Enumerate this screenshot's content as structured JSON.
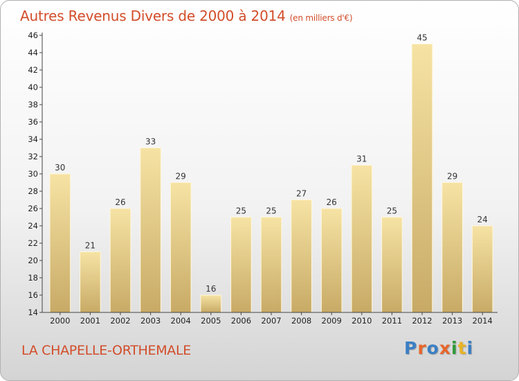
{
  "header": {
    "title": "Autres Revenus Divers de 2000 à 2014",
    "unit": "(en milliers d'€)"
  },
  "footer": {
    "commune": "LA CHAPELLE-ORTHEMALE",
    "logo_text": "Proxiti"
  },
  "colors": {
    "title": "#d24d2a",
    "bar_light": "#f6e3a4",
    "bar_dark": "#c8aa66",
    "logo": [
      "#3b7fc4",
      "#e8662a",
      "#3b7fc4",
      "#e8662a",
      "#2f9a3a",
      "#e8b424",
      "#3b7fc4"
    ]
  },
  "chart_data": {
    "type": "bar",
    "title": "Autres Revenus Divers de 2000 à 2014",
    "subtitle": "(en milliers d'€)",
    "categories": [
      "2000",
      "2001",
      "2002",
      "2003",
      "2004",
      "2005",
      "2006",
      "2007",
      "2008",
      "2009",
      "2010",
      "2011",
      "2012",
      "2013",
      "2014"
    ],
    "values": [
      30,
      21,
      26,
      33,
      29,
      16,
      25,
      25,
      27,
      26,
      31,
      25,
      45,
      29,
      24
    ],
    "ylim": [
      14,
      46
    ],
    "yticks": [
      14,
      16,
      18,
      20,
      22,
      24,
      26,
      28,
      30,
      32,
      34,
      36,
      38,
      40,
      42,
      44,
      46
    ],
    "grid": false,
    "data_labels": true
  }
}
